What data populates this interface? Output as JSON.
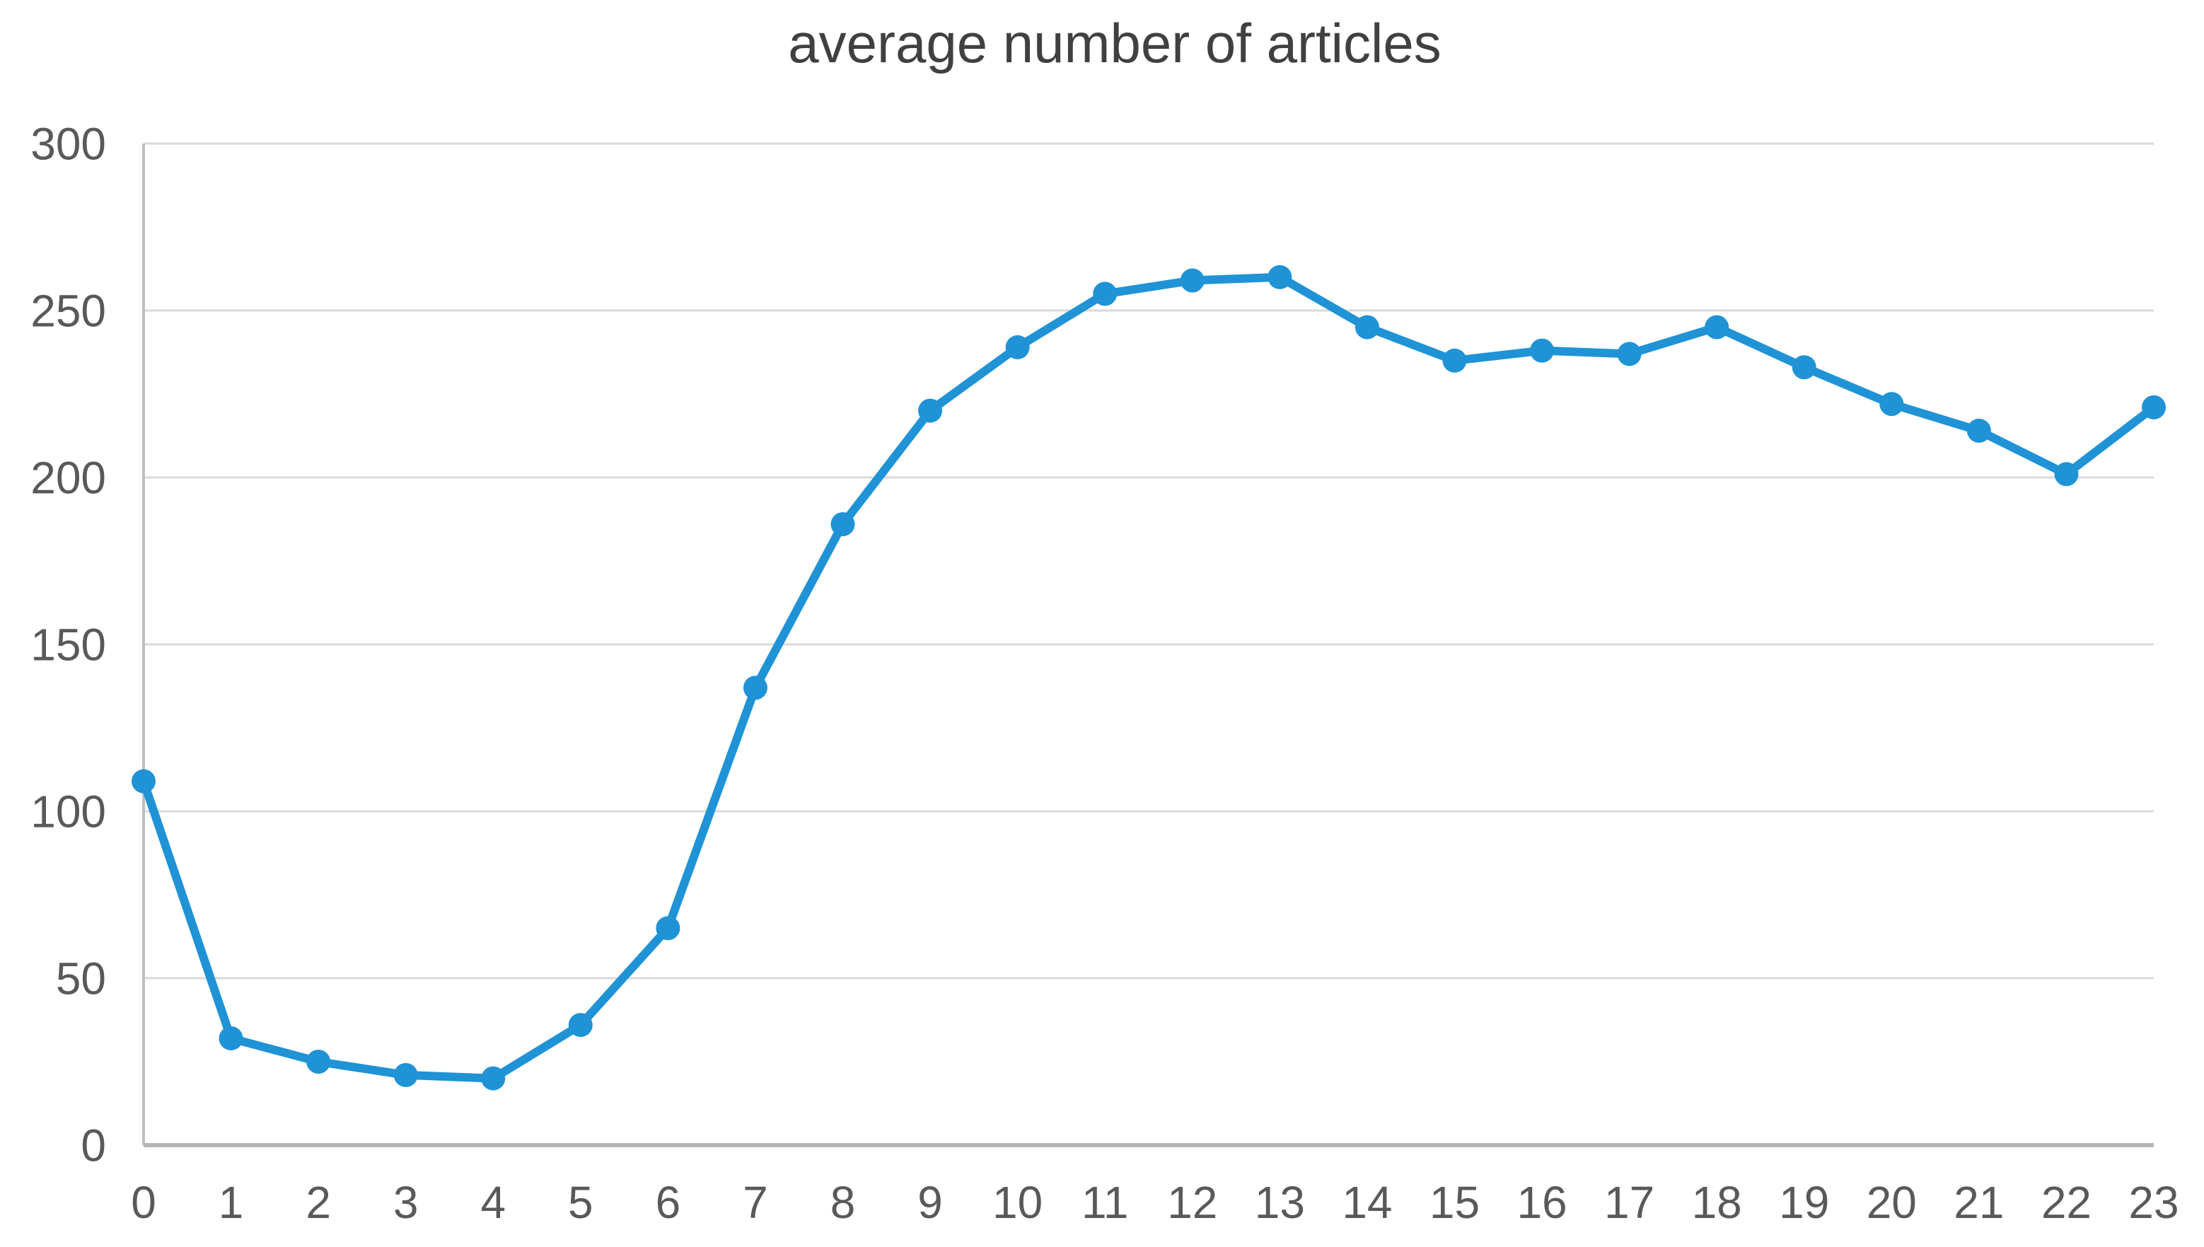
{
  "chart_data": {
    "type": "line",
    "title": "average number of articles",
    "categories": [
      "0",
      "1",
      "2",
      "3",
      "4",
      "5",
      "6",
      "7",
      "8",
      "9",
      "10",
      "11",
      "12",
      "13",
      "14",
      "15",
      "16",
      "17",
      "18",
      "19",
      "20",
      "21",
      "22",
      "23"
    ],
    "values": [
      109,
      32,
      25,
      21,
      20,
      36,
      65,
      137,
      186,
      220,
      239,
      255,
      259,
      260,
      245,
      235,
      238,
      237,
      245,
      233,
      222,
      214,
      201,
      221
    ],
    "xlabel": "",
    "ylabel": "",
    "ylim": [
      0,
      300
    ],
    "yticks": [
      0,
      50,
      100,
      150,
      200,
      250,
      300
    ],
    "grid": true,
    "legend": "none",
    "marker": "circle",
    "colors": {
      "line": "#1F93D6",
      "marker": "#1F93D6",
      "gridline": "#D9D9D9",
      "axis": "#BFBFBF",
      "baseline": "#B5B5B5",
      "tick_label": "#595959",
      "title": "#404040"
    }
  }
}
